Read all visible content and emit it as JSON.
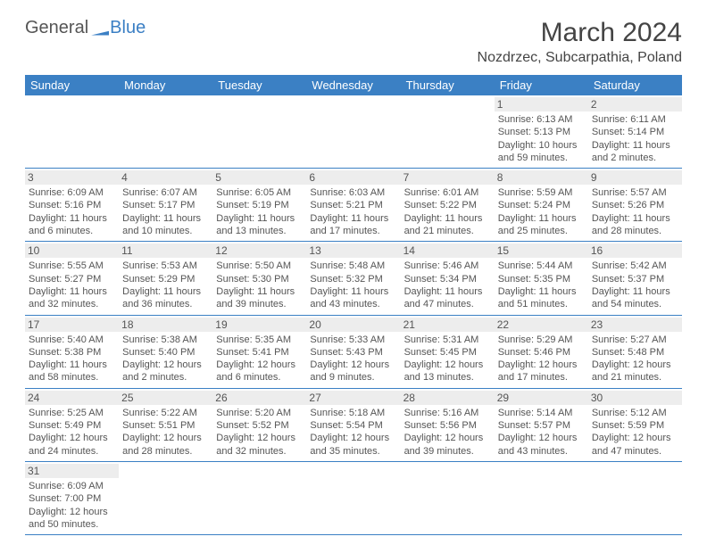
{
  "brand": {
    "part1": "General",
    "part2": "Blue"
  },
  "title": {
    "month": "March 2024",
    "location": "Nozdrzec, Subcarpathia, Poland"
  },
  "colors": {
    "header_bg": "#3b80c4",
    "header_fg": "#ffffff",
    "daynum_bg": "#ededed",
    "text": "#555555",
    "rule": "#3b80c4"
  },
  "dayNames": [
    "Sunday",
    "Monday",
    "Tuesday",
    "Wednesday",
    "Thursday",
    "Friday",
    "Saturday"
  ],
  "weeks": [
    [
      null,
      null,
      null,
      null,
      null,
      {
        "n": "1",
        "sr": "Sunrise: 6:13 AM",
        "ss": "Sunset: 5:13 PM",
        "dl": "Daylight: 10 hours and 59 minutes."
      },
      {
        "n": "2",
        "sr": "Sunrise: 6:11 AM",
        "ss": "Sunset: 5:14 PM",
        "dl": "Daylight: 11 hours and 2 minutes."
      }
    ],
    [
      {
        "n": "3",
        "sr": "Sunrise: 6:09 AM",
        "ss": "Sunset: 5:16 PM",
        "dl": "Daylight: 11 hours and 6 minutes."
      },
      {
        "n": "4",
        "sr": "Sunrise: 6:07 AM",
        "ss": "Sunset: 5:17 PM",
        "dl": "Daylight: 11 hours and 10 minutes."
      },
      {
        "n": "5",
        "sr": "Sunrise: 6:05 AM",
        "ss": "Sunset: 5:19 PM",
        "dl": "Daylight: 11 hours and 13 minutes."
      },
      {
        "n": "6",
        "sr": "Sunrise: 6:03 AM",
        "ss": "Sunset: 5:21 PM",
        "dl": "Daylight: 11 hours and 17 minutes."
      },
      {
        "n": "7",
        "sr": "Sunrise: 6:01 AM",
        "ss": "Sunset: 5:22 PM",
        "dl": "Daylight: 11 hours and 21 minutes."
      },
      {
        "n": "8",
        "sr": "Sunrise: 5:59 AM",
        "ss": "Sunset: 5:24 PM",
        "dl": "Daylight: 11 hours and 25 minutes."
      },
      {
        "n": "9",
        "sr": "Sunrise: 5:57 AM",
        "ss": "Sunset: 5:26 PM",
        "dl": "Daylight: 11 hours and 28 minutes."
      }
    ],
    [
      {
        "n": "10",
        "sr": "Sunrise: 5:55 AM",
        "ss": "Sunset: 5:27 PM",
        "dl": "Daylight: 11 hours and 32 minutes."
      },
      {
        "n": "11",
        "sr": "Sunrise: 5:53 AM",
        "ss": "Sunset: 5:29 PM",
        "dl": "Daylight: 11 hours and 36 minutes."
      },
      {
        "n": "12",
        "sr": "Sunrise: 5:50 AM",
        "ss": "Sunset: 5:30 PM",
        "dl": "Daylight: 11 hours and 39 minutes."
      },
      {
        "n": "13",
        "sr": "Sunrise: 5:48 AM",
        "ss": "Sunset: 5:32 PM",
        "dl": "Daylight: 11 hours and 43 minutes."
      },
      {
        "n": "14",
        "sr": "Sunrise: 5:46 AM",
        "ss": "Sunset: 5:34 PM",
        "dl": "Daylight: 11 hours and 47 minutes."
      },
      {
        "n": "15",
        "sr": "Sunrise: 5:44 AM",
        "ss": "Sunset: 5:35 PM",
        "dl": "Daylight: 11 hours and 51 minutes."
      },
      {
        "n": "16",
        "sr": "Sunrise: 5:42 AM",
        "ss": "Sunset: 5:37 PM",
        "dl": "Daylight: 11 hours and 54 minutes."
      }
    ],
    [
      {
        "n": "17",
        "sr": "Sunrise: 5:40 AM",
        "ss": "Sunset: 5:38 PM",
        "dl": "Daylight: 11 hours and 58 minutes."
      },
      {
        "n": "18",
        "sr": "Sunrise: 5:38 AM",
        "ss": "Sunset: 5:40 PM",
        "dl": "Daylight: 12 hours and 2 minutes."
      },
      {
        "n": "19",
        "sr": "Sunrise: 5:35 AM",
        "ss": "Sunset: 5:41 PM",
        "dl": "Daylight: 12 hours and 6 minutes."
      },
      {
        "n": "20",
        "sr": "Sunrise: 5:33 AM",
        "ss": "Sunset: 5:43 PM",
        "dl": "Daylight: 12 hours and 9 minutes."
      },
      {
        "n": "21",
        "sr": "Sunrise: 5:31 AM",
        "ss": "Sunset: 5:45 PM",
        "dl": "Daylight: 12 hours and 13 minutes."
      },
      {
        "n": "22",
        "sr": "Sunrise: 5:29 AM",
        "ss": "Sunset: 5:46 PM",
        "dl": "Daylight: 12 hours and 17 minutes."
      },
      {
        "n": "23",
        "sr": "Sunrise: 5:27 AM",
        "ss": "Sunset: 5:48 PM",
        "dl": "Daylight: 12 hours and 21 minutes."
      }
    ],
    [
      {
        "n": "24",
        "sr": "Sunrise: 5:25 AM",
        "ss": "Sunset: 5:49 PM",
        "dl": "Daylight: 12 hours and 24 minutes."
      },
      {
        "n": "25",
        "sr": "Sunrise: 5:22 AM",
        "ss": "Sunset: 5:51 PM",
        "dl": "Daylight: 12 hours and 28 minutes."
      },
      {
        "n": "26",
        "sr": "Sunrise: 5:20 AM",
        "ss": "Sunset: 5:52 PM",
        "dl": "Daylight: 12 hours and 32 minutes."
      },
      {
        "n": "27",
        "sr": "Sunrise: 5:18 AM",
        "ss": "Sunset: 5:54 PM",
        "dl": "Daylight: 12 hours and 35 minutes."
      },
      {
        "n": "28",
        "sr": "Sunrise: 5:16 AM",
        "ss": "Sunset: 5:56 PM",
        "dl": "Daylight: 12 hours and 39 minutes."
      },
      {
        "n": "29",
        "sr": "Sunrise: 5:14 AM",
        "ss": "Sunset: 5:57 PM",
        "dl": "Daylight: 12 hours and 43 minutes."
      },
      {
        "n": "30",
        "sr": "Sunrise: 5:12 AM",
        "ss": "Sunset: 5:59 PM",
        "dl": "Daylight: 12 hours and 47 minutes."
      }
    ],
    [
      {
        "n": "31",
        "sr": "Sunrise: 6:09 AM",
        "ss": "Sunset: 7:00 PM",
        "dl": "Daylight: 12 hours and 50 minutes."
      },
      null,
      null,
      null,
      null,
      null,
      null
    ]
  ]
}
